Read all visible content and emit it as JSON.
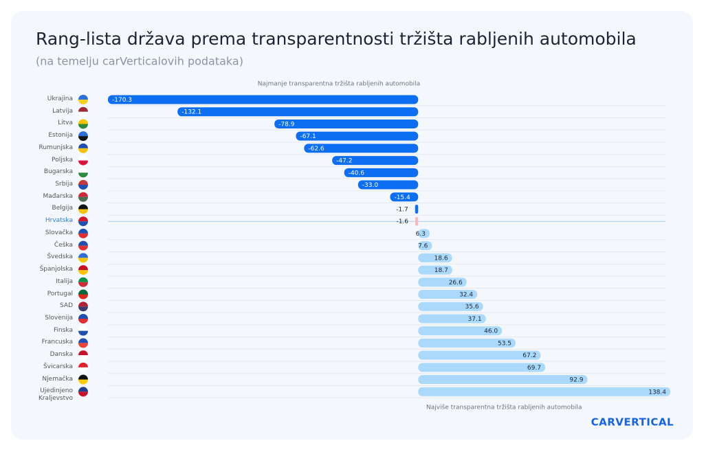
{
  "chart_data": {
    "type": "diverging_bar",
    "title": "Rang-lista država prema transparentnosti tržišta rabljenih automobila",
    "subtitle": "(na temelju carVerticalovih podataka)",
    "annotation_top": "Najmanje transparentna tržišta rabljenih automobila",
    "annotation_bottom": "Najviše transparentna tržišta rabljenih automobila",
    "brand": "carVertical",
    "categories": [
      "Ukrajina",
      "Latvija",
      "Litva",
      "Estonija",
      "Rumunjska",
      "Poljska",
      "Bugarska",
      "Srbija",
      "Mađarska",
      "Belgija",
      "Hrvatska",
      "Slovačka",
      "Češka",
      "Švedska",
      "Španjolska",
      "Italija",
      "Portugal",
      "SAD",
      "Slovenija",
      "Finska",
      "Francuska",
      "Danska",
      "Švicarska",
      "Njemačka",
      "Ujedinjeno Kraljevstvo"
    ],
    "values": [
      -170.3,
      -132.1,
      -78.9,
      -67.1,
      -62.6,
      -47.2,
      -40.6,
      -33.0,
      -15.4,
      -1.7,
      -1.6,
      6.3,
      7.6,
      18.6,
      18.7,
      26.6,
      32.4,
      35.6,
      37.1,
      46.0,
      53.5,
      67.2,
      69.7,
      92.9,
      138.4
    ],
    "value_labels": [
      "-170.3",
      "-132.1",
      "-78.9",
      "-67.1",
      "-62.6",
      "-47.2",
      "-40.6",
      "-33.0",
      "-15.4",
      "-1.7",
      "-1.6",
      "6.3",
      "7.6",
      "18.6",
      "18.7",
      "26.6",
      "32.4",
      "35.6",
      "37.1",
      "46.0",
      "53.5",
      "67.2",
      "69.7",
      "92.9",
      "138.4"
    ],
    "colors": {
      "negative": "#0b6ef3",
      "positive": "#aad9fc",
      "highlight": "#f7b9b9",
      "highlight_label": "#2f7fe0"
    },
    "highlight_index": 10
  }
}
